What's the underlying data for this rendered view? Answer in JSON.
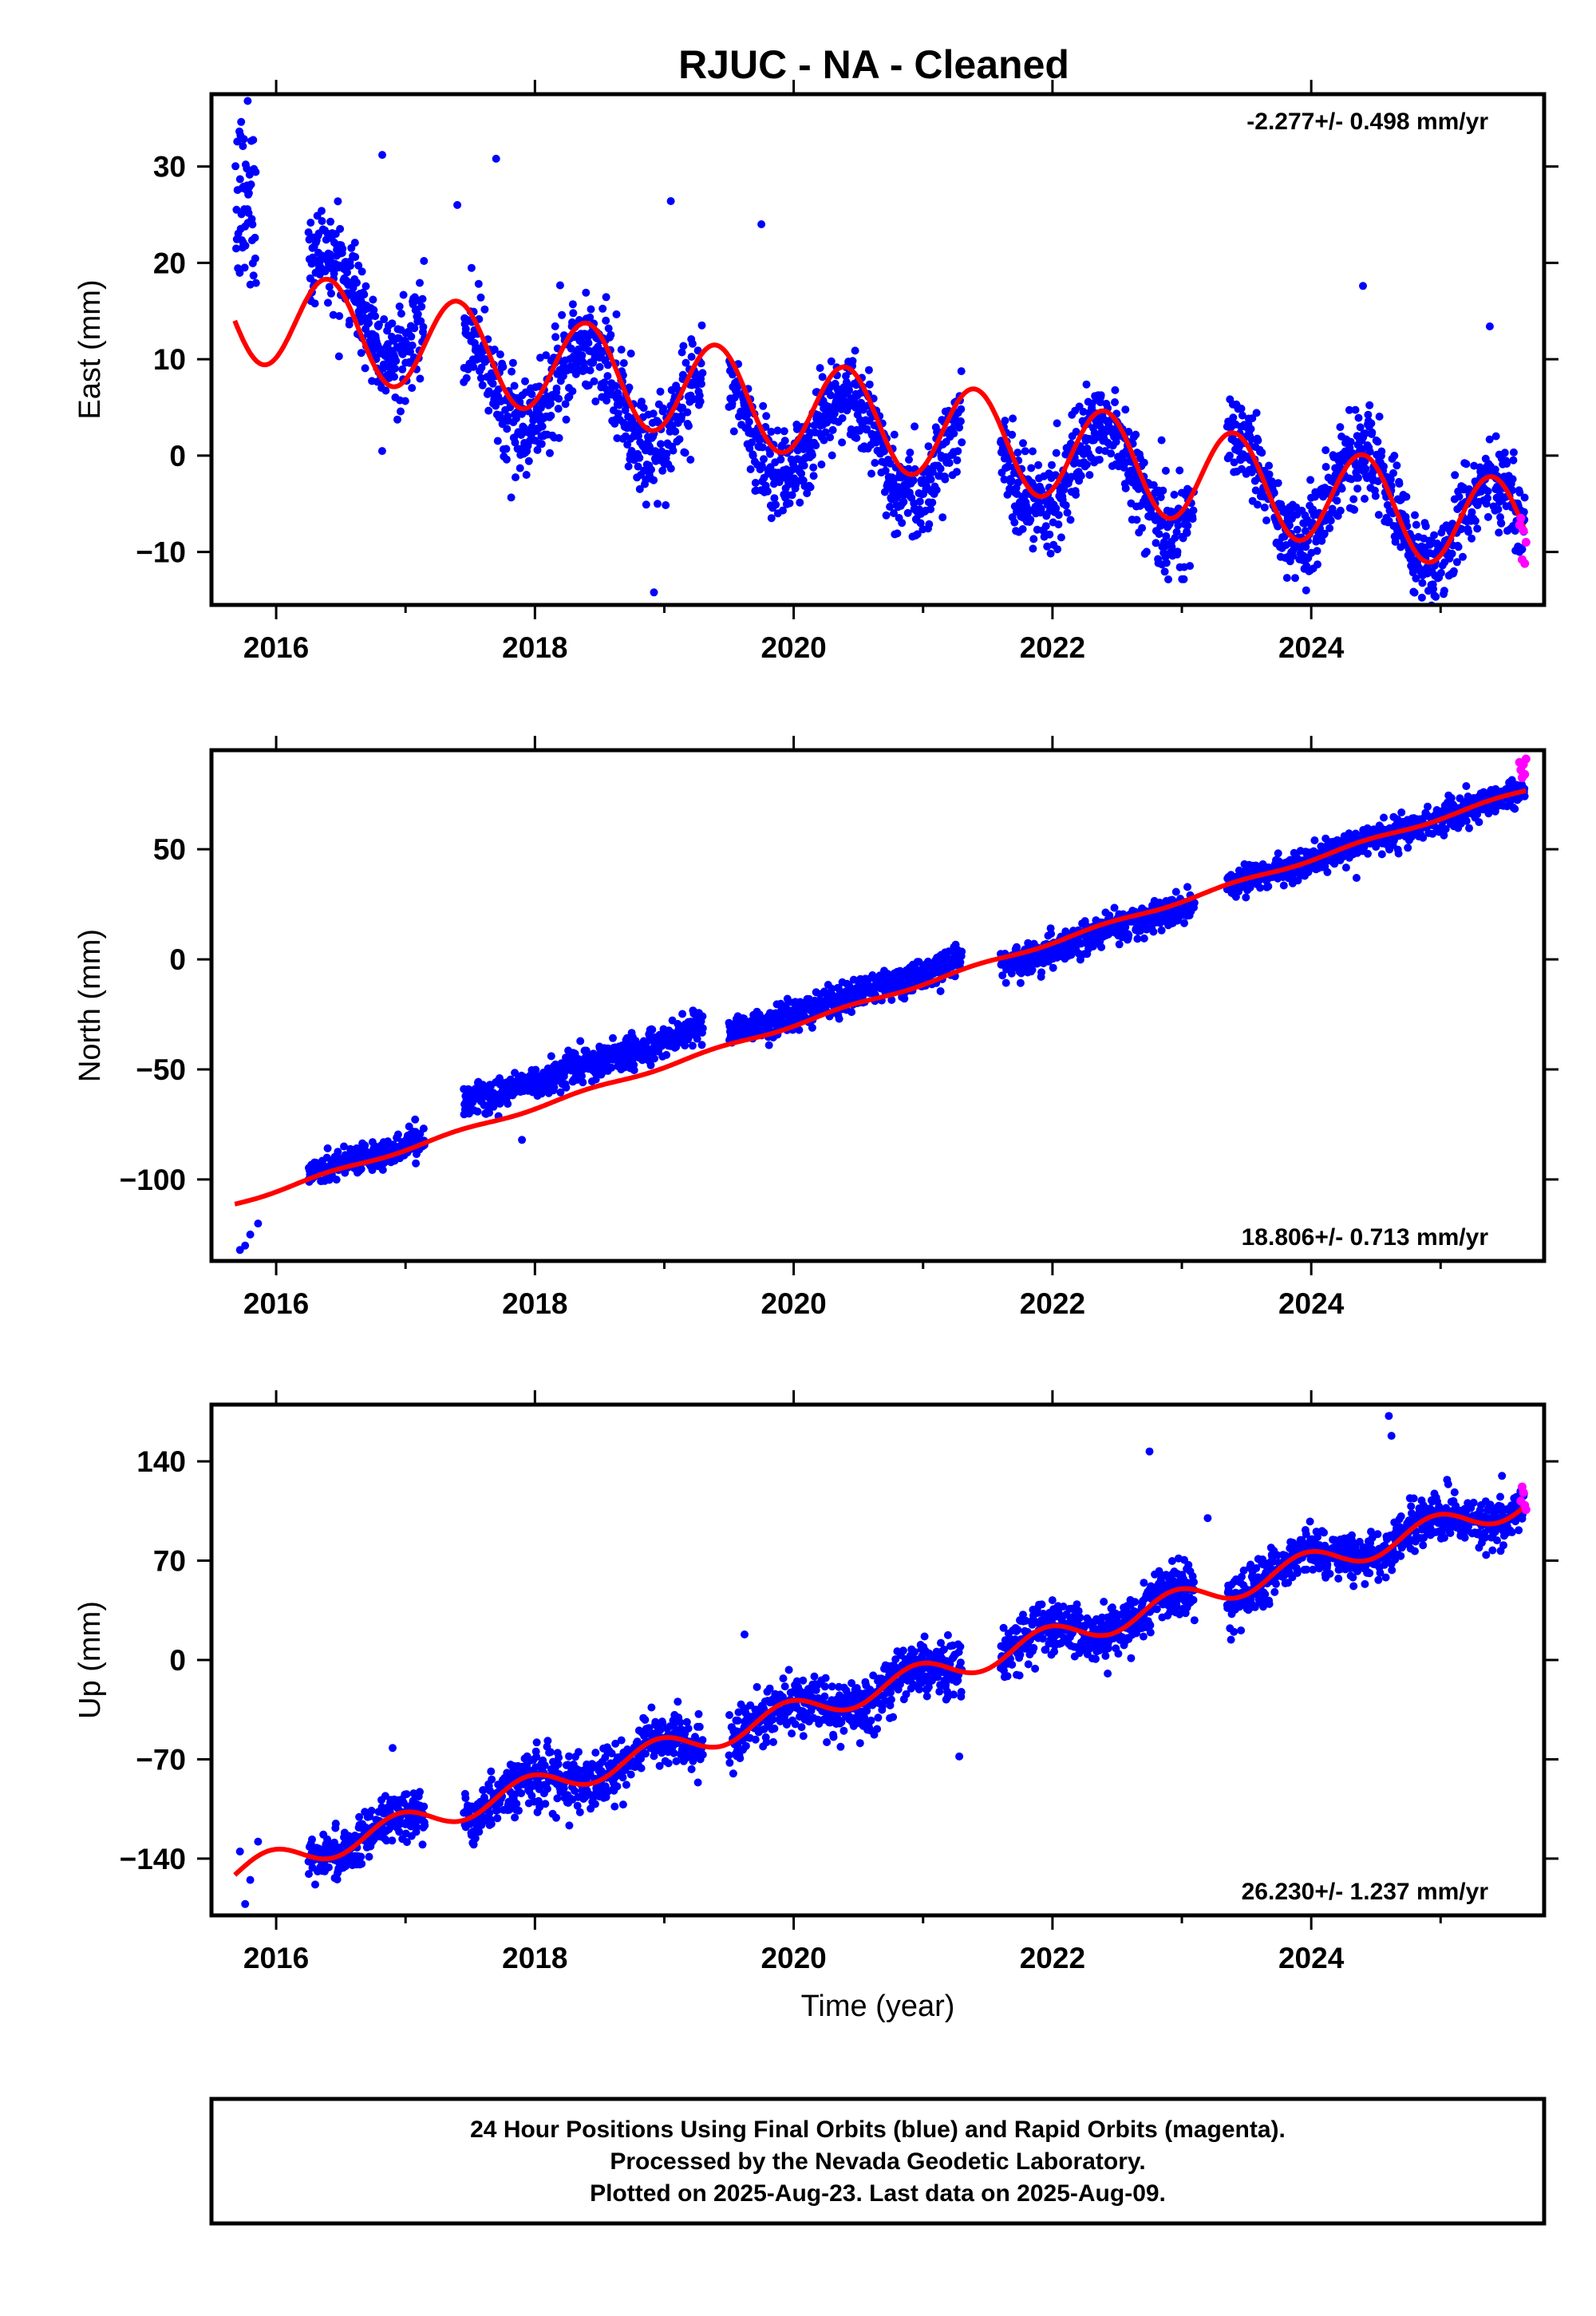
{
  "title": "RJUC  - NA - Cleaned",
  "colors": {
    "final_orbits": "#0000ff",
    "rapid_orbits": "#ff00ff",
    "model": "#ff0000",
    "frame": "#000000"
  },
  "chart_data": [
    {
      "type": "scatter",
      "component": "east",
      "ylabel": "East (mm)",
      "xlabel": "",
      "xlim": [
        2015.5,
        2025.8
      ],
      "ylim": [
        -15.5,
        37.5
      ],
      "xticks": [
        2016,
        2018,
        2020,
        2022,
        2024
      ],
      "yticks": [
        -10,
        0,
        10,
        20,
        30
      ],
      "x_tick_labels": [
        "2016",
        "2018",
        "2020",
        "2022",
        "2024"
      ],
      "y_tick_labels": [
        "−10",
        "0",
        "10",
        "20",
        "30"
      ],
      "rate_text": "-2.277+/- 0.498 mm/yr",
      "rate_position": "top-right",
      "model": {
        "trend_mm_per_yr": -2.277,
        "offset_at_2016": 14.2,
        "annual_amplitude_mm": 5.0,
        "annual_peak_fraction_of_year": 0.4
      },
      "data_segments": [
        {
          "start": 2015.68,
          "end": 2015.85,
          "base": 26.0,
          "season_amp": 0,
          "noise": 5.0
        },
        {
          "start": 2016.25,
          "end": 2017.15,
          "base": 0.0,
          "season_amp": 5.0,
          "noise": 2.5,
          "offset_from_model": 3.0
        },
        {
          "start": 2017.45,
          "end": 2019.3,
          "base": 0.0,
          "season_amp": 5.0,
          "noise": 2.6,
          "offset_from_model": -2.0
        },
        {
          "start": 2019.5,
          "end": 2021.3,
          "base": 0.0,
          "season_amp": 5.0,
          "noise": 2.4,
          "offset_from_model": -2.5
        },
        {
          "start": 2021.6,
          "end": 2023.1,
          "base": 0.0,
          "season_amp": 5.0,
          "noise": 2.4,
          "offset_from_model": -1.5
        },
        {
          "start": 2023.35,
          "end": 2025.65,
          "base": 0.0,
          "season_amp": 5.0,
          "noise": 2.2,
          "offset_from_model": 0.0
        }
      ],
      "rapid_points": [
        [
          2025.62,
          -6.5
        ],
        [
          2025.64,
          -7.8
        ],
        [
          2025.66,
          -9.0
        ],
        [
          2025.63,
          -10.8
        ],
        [
          2025.65,
          -11.2
        ],
        [
          2025.61,
          -7.2
        ]
      ],
      "outliers": [
        [
          2015.78,
          36.8
        ],
        [
          2017.7,
          30.8
        ],
        [
          2019.05,
          26.4
        ],
        [
          2019.75,
          24.0
        ],
        [
          2018.92,
          -14.2
        ],
        [
          2024.4,
          17.6
        ],
        [
          2025.38,
          13.4
        ],
        [
          2016.82,
          31.2
        ],
        [
          2017.4,
          26.0
        ]
      ]
    },
    {
      "type": "scatter",
      "component": "north",
      "ylabel": "North (mm)",
      "xlabel": "",
      "xlim": [
        2015.5,
        2025.8
      ],
      "ylim": [
        -137,
        95
      ],
      "xticks": [
        2016,
        2018,
        2020,
        2022,
        2024
      ],
      "yticks": [
        -100,
        -50,
        0,
        50
      ],
      "x_tick_labels": [
        "2016",
        "2018",
        "2020",
        "2022",
        "2024"
      ],
      "y_tick_labels": [
        "−100",
        "−50",
        "0",
        "50"
      ],
      "rate_text": "18.806+/- 0.713 mm/yr",
      "rate_position": "bottom-right",
      "model": {
        "trend_mm_per_yr": 18.806,
        "offset_at_2016": -105.0,
        "annual_amplitude_mm": 0.8,
        "annual_peak_fraction_of_year": 0.4
      },
      "data_segments": [
        {
          "start": 2016.25,
          "end": 2017.15,
          "base": 0.0,
          "season_amp": 1.0,
          "noise": 3.2,
          "offset_from_model": 2.0
        },
        {
          "start": 2017.45,
          "end": 2019.3,
          "base": 0.0,
          "season_amp": 1.0,
          "noise": 3.6,
          "offset_from_model": 12.0
        },
        {
          "start": 2019.5,
          "end": 2021.3,
          "base": 0.0,
          "season_amp": 1.0,
          "noise": 3.2,
          "offset_from_model": 5.0
        },
        {
          "start": 2021.6,
          "end": 2023.1,
          "base": 0.0,
          "season_amp": 1.0,
          "noise": 3.4,
          "offset_from_model": -3.0
        },
        {
          "start": 2023.35,
          "end": 2025.65,
          "base": 0.0,
          "season_amp": 1.0,
          "noise": 3.2,
          "offset_from_model": 0.0
        }
      ],
      "rapid_points": [
        [
          2025.62,
          86.0
        ],
        [
          2025.64,
          88.5
        ],
        [
          2025.66,
          91.0
        ],
        [
          2025.63,
          82.5
        ],
        [
          2025.65,
          84.0
        ],
        [
          2025.61,
          89.5
        ]
      ],
      "outliers": [
        [
          2015.72,
          -132.0
        ],
        [
          2015.8,
          -125.0
        ],
        [
          2015.86,
          -120.0
        ],
        [
          2015.76,
          -130.0
        ],
        [
          2017.9,
          -82.0
        ],
        [
          2024.35,
          37.0
        ]
      ]
    },
    {
      "type": "scatter",
      "component": "up",
      "ylabel": "Up (mm)",
      "xlabel": "Time (year)",
      "xlim": [
        2015.5,
        2025.8
      ],
      "ylim": [
        -180,
        180
      ],
      "xticks": [
        2016,
        2018,
        2020,
        2022,
        2024
      ],
      "yticks": [
        -140,
        -70,
        0,
        70,
        140
      ],
      "x_tick_labels": [
        "2016",
        "2018",
        "2020",
        "2022",
        "2024"
      ],
      "y_tick_labels": [
        "−140",
        "−70",
        "0",
        "70",
        "140"
      ],
      "rate_text": "26.230+/- 1.237 mm/yr",
      "rate_position": "bottom-right",
      "model": {
        "trend_mm_per_yr": 26.23,
        "offset_at_2016": -142.0,
        "annual_amplitude_mm": 9.0,
        "annual_peak_fraction_of_year": 0.95
      },
      "data_segments": [
        {
          "start": 2016.25,
          "end": 2017.15,
          "base": 0.0,
          "season_amp": 9.0,
          "noise": 8.5,
          "offset_from_model": 0.0
        },
        {
          "start": 2017.45,
          "end": 2019.3,
          "base": 0.0,
          "season_amp": 9.0,
          "noise": 9.5,
          "offset_from_model": 0.0
        },
        {
          "start": 2019.5,
          "end": 2021.3,
          "base": 0.0,
          "season_amp": 9.0,
          "noise": 9.5,
          "offset_from_model": 0.0
        },
        {
          "start": 2021.6,
          "end": 2023.1,
          "base": 0.0,
          "season_amp": 9.0,
          "noise": 9.0,
          "offset_from_model": 0.0
        },
        {
          "start": 2023.35,
          "end": 2025.65,
          "base": 0.0,
          "season_amp": 9.0,
          "noise": 8.5,
          "offset_from_model": 0.0
        }
      ],
      "rapid_points": [
        [
          2025.62,
          112.0
        ],
        [
          2025.64,
          118.0
        ],
        [
          2025.66,
          106.0
        ],
        [
          2025.63,
          122.0
        ],
        [
          2025.65,
          109.0
        ]
      ],
      "outliers": [
        [
          2015.72,
          -135.0
        ],
        [
          2015.8,
          -155.0
        ],
        [
          2015.86,
          -128.0
        ],
        [
          2015.76,
          -172.0
        ],
        [
          2016.9,
          -62.0
        ],
        [
          2019.62,
          18.0
        ],
        [
          2021.28,
          -68.0
        ],
        [
          2022.75,
          147.0
        ],
        [
          2023.2,
          100.0
        ],
        [
          2024.6,
          172.0
        ],
        [
          2024.62,
          158.0
        ],
        [
          2025.05,
          127.0
        ]
      ]
    }
  ],
  "footer": {
    "line1": "24 Hour Positions Using Final Orbits (blue) and Rapid Orbits (magenta).",
    "line2": "Processed by the Nevada Geodetic Laboratory.",
    "line3": "Plotted on 2025-Aug-23. Last data on 2025-Aug-09."
  }
}
